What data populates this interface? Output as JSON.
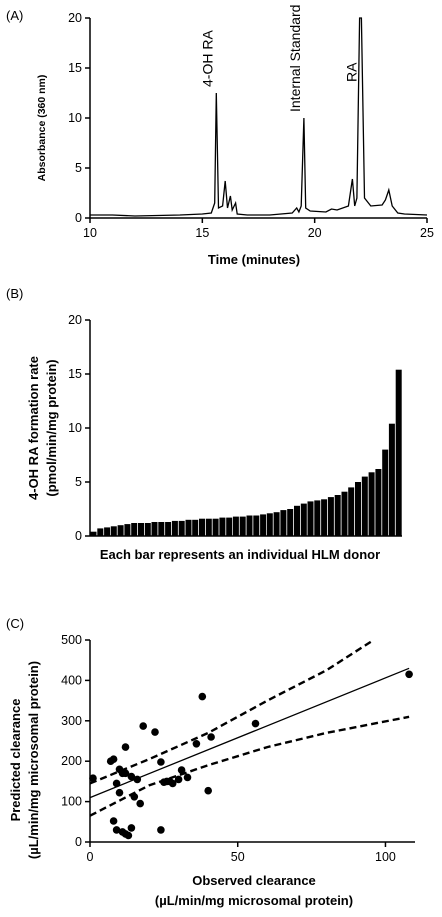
{
  "chart_data": [
    {
      "panel": "(A)",
      "type": "line",
      "xlabel": "Time (minutes)",
      "ylabel": "Absorbance (360 nm)",
      "xlim": [
        10,
        25
      ],
      "ylim": [
        0,
        20
      ],
      "xticks": [
        "10",
        "15",
        "20",
        "25"
      ],
      "yticks": [
        "0",
        "5",
        "10",
        "15",
        "20"
      ],
      "baseline_points": [
        [
          10,
          0.3
        ],
        [
          10.5,
          0.3
        ],
        [
          11,
          0.3
        ],
        [
          12,
          0.2
        ],
        [
          13,
          0.25
        ],
        [
          14,
          0.3
        ],
        [
          15,
          0.4
        ],
        [
          15.4,
          0.5
        ],
        [
          15.55,
          1.5
        ],
        [
          15.62,
          12.5
        ],
        [
          15.72,
          1.0
        ],
        [
          15.9,
          1.2
        ],
        [
          16.02,
          3.7
        ],
        [
          16.12,
          1.0
        ],
        [
          16.25,
          2.2
        ],
        [
          16.33,
          0.8
        ],
        [
          16.48,
          1.5
        ],
        [
          16.55,
          0.4
        ],
        [
          17,
          0.3
        ],
        [
          18,
          0.3
        ],
        [
          19,
          0.5
        ],
        [
          19.2,
          1.0
        ],
        [
          19.3,
          0.6
        ],
        [
          19.4,
          1.2
        ],
        [
          19.52,
          10.0
        ],
        [
          19.6,
          1.0
        ],
        [
          19.8,
          0.7
        ],
        [
          20.5,
          0.6
        ],
        [
          20.75,
          0.9
        ],
        [
          21,
          0.8
        ],
        [
          21.5,
          1.2
        ],
        [
          21.68,
          3.9
        ],
        [
          21.78,
          1.2
        ],
        [
          21.88,
          2.0
        ],
        [
          22.0,
          20.0
        ],
        [
          22.08,
          20.0
        ],
        [
          22.22,
          2.0
        ],
        [
          22.5,
          1.2
        ],
        [
          23.0,
          1.3
        ],
        [
          23.15,
          1.8
        ],
        [
          23.3,
          2.8
        ],
        [
          23.45,
          1.2
        ],
        [
          23.7,
          0.5
        ],
        [
          24,
          0.4
        ],
        [
          25,
          0.3
        ]
      ],
      "annotations": [
        {
          "text": "4-OH RA",
          "x": 15.62
        },
        {
          "text": "Internal Standard",
          "x": 19.52
        },
        {
          "text": "RA",
          "x": 22.04
        }
      ]
    },
    {
      "panel": "(B)",
      "type": "bar",
      "xlabel": "Each bar represents an individual HLM donor",
      "ylabel": "4-OH RA formation rate",
      "ylabel2": "(pmol/min/mg protein)",
      "ylim": [
        0,
        20
      ],
      "yticks": [
        "0",
        "5",
        "10",
        "15",
        "20"
      ],
      "values": [
        0.4,
        0.7,
        0.8,
        0.9,
        1.0,
        1.1,
        1.2,
        1.2,
        1.2,
        1.3,
        1.3,
        1.3,
        1.4,
        1.4,
        1.5,
        1.5,
        1.6,
        1.6,
        1.6,
        1.7,
        1.7,
        1.8,
        1.8,
        1.9,
        1.9,
        2.0,
        2.1,
        2.2,
        2.4,
        2.5,
        2.8,
        3.0,
        3.2,
        3.3,
        3.4,
        3.6,
        3.8,
        4.1,
        4.5,
        5.0,
        5.5,
        5.9,
        6.2,
        8.0,
        10.4,
        15.4
      ]
    },
    {
      "panel": "(C)",
      "type": "scatter",
      "xlabel": "Observed clearance",
      "xlabel2": "(µL/min/mg microsomal protein)",
      "ylabel": "Predicted clearance",
      "ylabel2": "(µL/min/mg microsomal protein)",
      "xlim": [
        0,
        110
      ],
      "ylim": [
        0,
        500
      ],
      "xticks": [
        "0",
        "50",
        "100"
      ],
      "yticks": [
        "0",
        "100",
        "200",
        "300",
        "400",
        "500"
      ],
      "points": [
        [
          1,
          158
        ],
        [
          7,
          200
        ],
        [
          8,
          205
        ],
        [
          10,
          180
        ],
        [
          11,
          170
        ],
        [
          9,
          145
        ],
        [
          12,
          170
        ],
        [
          12,
          235
        ],
        [
          14,
          162
        ],
        [
          16,
          155
        ],
        [
          15,
          112
        ],
        [
          17,
          95
        ],
        [
          18,
          287
        ],
        [
          24,
          198
        ],
        [
          26,
          150
        ],
        [
          25,
          148
        ],
        [
          27,
          150
        ],
        [
          28,
          145
        ],
        [
          30,
          155
        ],
        [
          31,
          178
        ],
        [
          33,
          160
        ],
        [
          22,
          272
        ],
        [
          38,
          360
        ],
        [
          40,
          127
        ],
        [
          41,
          260
        ],
        [
          56,
          293
        ],
        [
          36,
          243
        ],
        [
          108,
          415
        ],
        [
          8,
          52
        ],
        [
          9,
          30
        ],
        [
          11,
          25
        ],
        [
          12,
          20
        ],
        [
          13,
          16
        ],
        [
          14,
          35
        ],
        [
          24,
          30
        ],
        [
          10,
          122
        ]
      ],
      "fit_line": [
        [
          0,
          110
        ],
        [
          108,
          430
        ]
      ],
      "ci_upper": [
        [
          0,
          145
        ],
        [
          20,
          205
        ],
        [
          40,
          270
        ],
        [
          60,
          350
        ],
        [
          80,
          425
        ],
        [
          96,
          500
        ]
      ],
      "ci_lower": [
        [
          0,
          65
        ],
        [
          20,
          140
        ],
        [
          40,
          190
        ],
        [
          60,
          235
        ],
        [
          80,
          270
        ],
        [
          108,
          310
        ]
      ]
    }
  ]
}
